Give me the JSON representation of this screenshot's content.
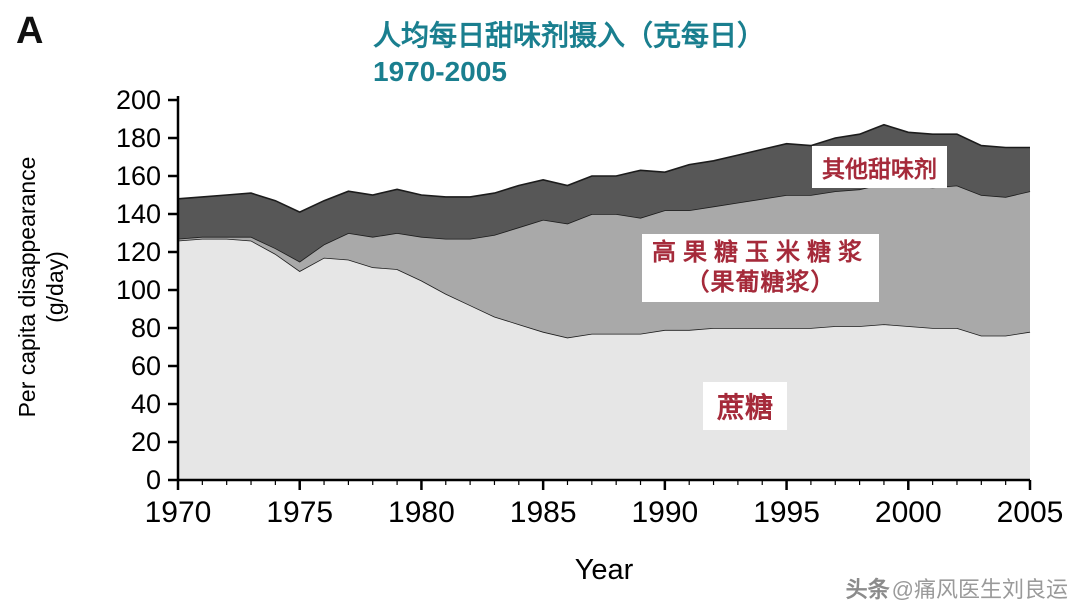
{
  "panel_label": "A",
  "title": {
    "line1": "人均每日甜味剂摄入（克每日）",
    "line2": "1970-2005",
    "color": "#1a7f8f"
  },
  "watermark": {
    "brand": "头条",
    "handle": "@痛风医生刘良运"
  },
  "chart_data": {
    "type": "area",
    "stacked": true,
    "title": "人均每日甜味剂摄入（克每日）1970-2005",
    "xlabel": "Year",
    "ylabel": "Per capita disappearance (g/day)",
    "ylabel_line1": "Per capita disappearance",
    "ylabel_line2": "(g/day)",
    "ylim": [
      0,
      200
    ],
    "yticks": [
      0,
      20,
      40,
      60,
      80,
      100,
      120,
      140,
      160,
      180,
      200
    ],
    "xticks": [
      1970,
      1975,
      1980,
      1985,
      1990,
      1995,
      2000,
      2005
    ],
    "x": [
      1970,
      1971,
      1972,
      1973,
      1974,
      1975,
      1976,
      1977,
      1978,
      1979,
      1980,
      1981,
      1982,
      1983,
      1984,
      1985,
      1986,
      1987,
      1988,
      1989,
      1990,
      1991,
      1992,
      1993,
      1994,
      1995,
      1996,
      1997,
      1998,
      1999,
      2000,
      2001,
      2002,
      2003,
      2004,
      2005
    ],
    "series": [
      {
        "name": "蔗糖",
        "color": "#e6e6e6",
        "values": [
          126,
          127,
          127,
          126,
          119,
          110,
          117,
          116,
          112,
          111,
          105,
          98,
          92,
          86,
          82,
          78,
          75,
          77,
          77,
          77,
          79,
          79,
          80,
          80,
          80,
          80,
          80,
          81,
          81,
          82,
          81,
          80,
          80,
          76,
          76,
          78
        ]
      },
      {
        "name": "高果糖玉米糖浆（果葡糖浆）",
        "color": "#a9a9a9",
        "values": [
          1,
          1,
          1,
          2,
          3,
          5,
          7,
          14,
          16,
          19,
          23,
          29,
          35,
          43,
          51,
          59,
          60,
          63,
          63,
          61,
          63,
          63,
          64,
          66,
          68,
          70,
          70,
          71,
          72,
          74,
          74,
          74,
          75,
          74,
          73,
          74
        ]
      },
      {
        "name": "其他甜味剂",
        "color": "#575757",
        "values": [
          21,
          21,
          22,
          23,
          25,
          26,
          23,
          22,
          22,
          23,
          22,
          22,
          22,
          22,
          22,
          21,
          20,
          20,
          20,
          25,
          20,
          24,
          24,
          25,
          26,
          27,
          26,
          28,
          29,
          31,
          28,
          28,
          27,
          26,
          26,
          23
        ]
      }
    ],
    "annotations": {
      "other": "其他甜味剂",
      "hfcs_line1": "高果糖玉米糖浆",
      "hfcs_line2": "（果葡糖浆）",
      "sucrose": "蔗糖"
    },
    "legend": "labels drawn on chart",
    "grid": false
  }
}
